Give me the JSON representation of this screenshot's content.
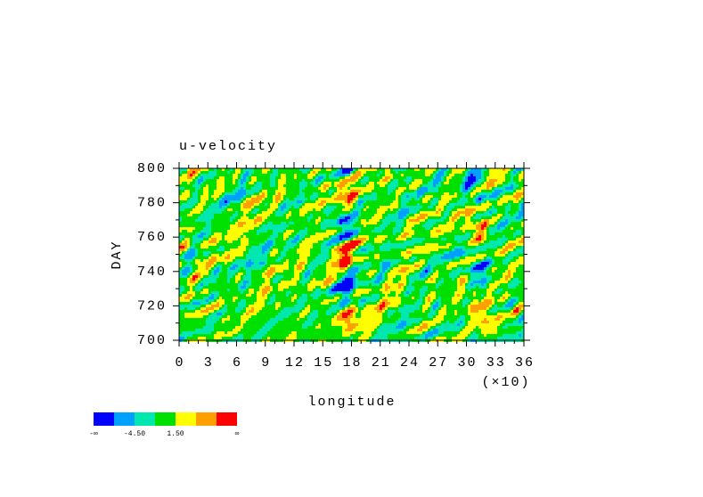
{
  "chart_data": {
    "type": "contour",
    "title": "u-velocity",
    "x_label": "longitude",
    "y_label": "DAY",
    "x_scale_note": "(×10)",
    "xlim": [
      0,
      36
    ],
    "xticks": [
      0,
      3,
      6,
      9,
      12,
      15,
      18,
      21,
      24,
      27,
      30,
      33,
      36
    ],
    "ylim": [
      700,
      800
    ],
    "yticks": [
      700,
      720,
      740,
      760,
      780,
      800
    ],
    "colorbar": {
      "colors": [
        "#0000ff",
        "#00a0ff",
        "#00e8b0",
        "#00e000",
        "#ffff00",
        "#ffa000",
        "#ff0000"
      ],
      "labels": [
        "-∞",
        "-4.50",
        "1.50",
        "∞"
      ]
    }
  }
}
